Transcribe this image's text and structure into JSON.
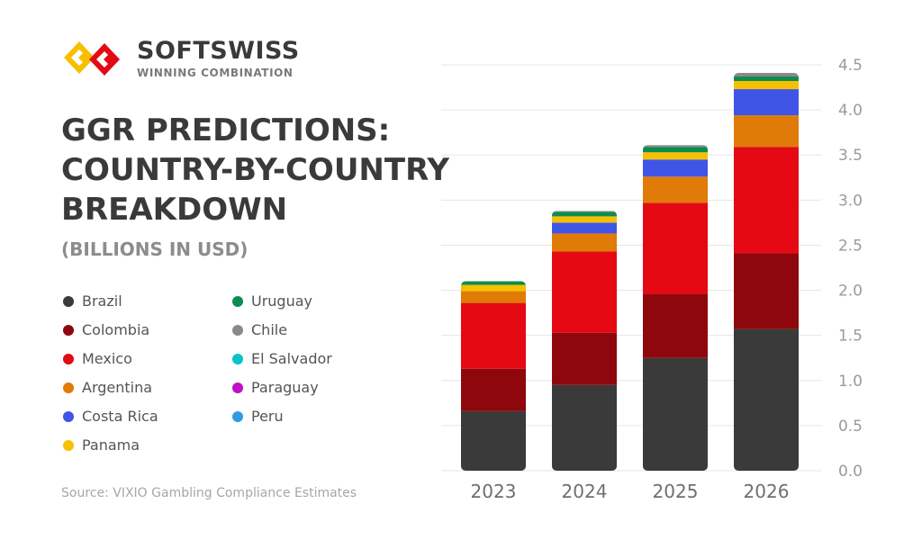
{
  "logo": {
    "brand": "SOFTSWISS",
    "tagline": "WINNING COMBINATION"
  },
  "title_lines": [
    "GGR PREDICTIONS:",
    "COUNTRY-BY-COUNTRY",
    "BREAKDOWN"
  ],
  "subtitle": "(BILLIONS IN USD)",
  "source": "Source: VIXIO Gambling Compliance Estimates",
  "chart_data": {
    "type": "bar",
    "stacked": true,
    "title": "GGR PREDICTIONS: COUNTRY-BY-COUNTRY BREAKDOWN",
    "ylabel": "(BILLIONS IN USD)",
    "categories": [
      "2023",
      "2024",
      "2025",
      "2026"
    ],
    "ylim": [
      0,
      4.5
    ],
    "yticks": [
      "0.0",
      "0.5",
      "1.0",
      "1.5",
      "2.0",
      "2.5",
      "3.0",
      "3.5",
      "4.0",
      "4.5"
    ],
    "yaxis_position": "right",
    "grid": true,
    "legend_position": "left",
    "series": [
      {
        "name": "Brazil",
        "color": "#3a3a3a",
        "values": [
          0.66,
          0.95,
          1.25,
          1.57
        ]
      },
      {
        "name": "Colombia",
        "color": "#8e070c",
        "values": [
          0.47,
          0.58,
          0.71,
          0.84
        ]
      },
      {
        "name": "Mexico",
        "color": "#e50914",
        "values": [
          0.73,
          0.9,
          1.01,
          1.18
        ]
      },
      {
        "name": "Argentina",
        "color": "#e07b07",
        "values": [
          0.13,
          0.2,
          0.29,
          0.35
        ]
      },
      {
        "name": "Costa Rica",
        "color": "#4054e6",
        "values": [
          0.0,
          0.12,
          0.19,
          0.29
        ]
      },
      {
        "name": "Panama",
        "color": "#f6c000",
        "values": [
          0.07,
          0.07,
          0.08,
          0.09
        ]
      },
      {
        "name": "Uruguay",
        "color": "#0e8c50",
        "values": [
          0.04,
          0.05,
          0.06,
          0.05
        ]
      },
      {
        "name": "Chile",
        "color": "#8a8a8a",
        "values": [
          0.0,
          0.01,
          0.02,
          0.04
        ]
      },
      {
        "name": "El Salvador",
        "color": "#0cc2c9",
        "values": [
          0.0,
          0.0,
          0.0,
          0.0
        ]
      },
      {
        "name": "Paraguay",
        "color": "#c20fc8",
        "values": [
          0.0,
          0.0,
          0.0,
          0.0
        ]
      },
      {
        "name": "Peru",
        "color": "#2f9ce0",
        "values": [
          0.0,
          0.0,
          0.0,
          0.0
        ]
      }
    ]
  },
  "colors": {
    "logo_yellow": "#f6c000",
    "logo_red": "#e50914",
    "text_dark": "#3a3a3a"
  }
}
